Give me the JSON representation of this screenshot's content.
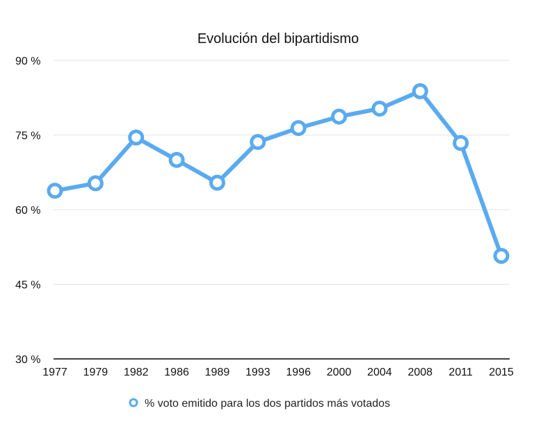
{
  "chart_data": {
    "type": "line",
    "title": "Evolución del bipartidismo",
    "categories": [
      "1977",
      "1979",
      "1982",
      "1986",
      "1989",
      "1993",
      "1996",
      "2000",
      "2004",
      "2008",
      "2011",
      "2015"
    ],
    "series": [
      {
        "name": "% voto emitido para los dos partidos más votados",
        "values": [
          63.8,
          65.3,
          74.5,
          70.0,
          65.4,
          73.6,
          76.4,
          78.7,
          80.3,
          83.8,
          73.4,
          50.7
        ],
        "color": "#5AAAF0"
      }
    ],
    "ylim": [
      30,
      90
    ],
    "yticks": [
      {
        "value": 90,
        "label": "90 %"
      },
      {
        "value": 75,
        "label": "75 %"
      },
      {
        "value": 60,
        "label": "60 %"
      },
      {
        "value": 45,
        "label": "45 %"
      },
      {
        "value": 30,
        "label": "30 %"
      }
    ],
    "xlabel": "",
    "ylabel": "",
    "grid": true,
    "legend": "bottom"
  }
}
